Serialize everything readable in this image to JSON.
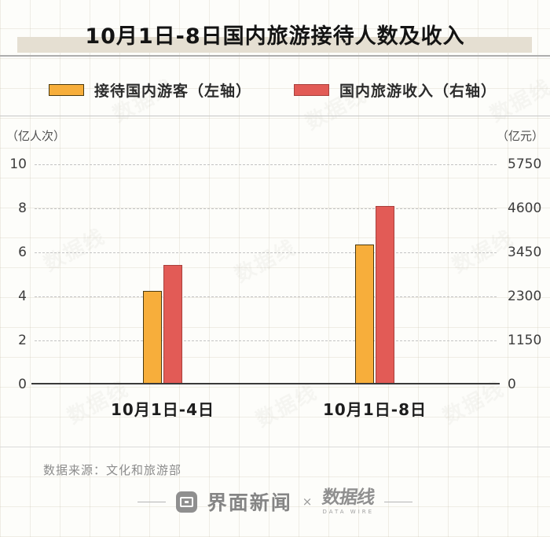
{
  "title": "10月1日-8日国内旅游接待人数及收入",
  "legend": [
    {
      "label": "接待国内游客（左轴）"
    },
    {
      "label": "国内旅游收入（右轴）"
    }
  ],
  "chart_data": {
    "type": "bar",
    "title": "10月1日-8日国内旅游接待人数及收入",
    "categories": [
      "10月1日-4日",
      "10月1日-8日"
    ],
    "series": [
      {
        "name": "接待国内游客（左轴）",
        "axis": "left",
        "values": [
          4.25,
          6.37
        ],
        "color": "#F7AE3B",
        "border": "#4a3a10"
      },
      {
        "name": "国内旅游收入（右轴）",
        "axis": "right",
        "values": [
          3120.2,
          4665.6
        ],
        "color": "#E25B56",
        "border": "#a8403c"
      }
    ],
    "left_axis": {
      "unit": "（亿人次）",
      "range": [
        0,
        10
      ],
      "ticks": [
        0,
        2,
        4,
        6,
        8,
        10
      ]
    },
    "right_axis": {
      "unit": "（亿元）",
      "range": [
        0,
        5750
      ],
      "ticks": [
        0,
        1150,
        2300,
        3450,
        4600,
        5750
      ]
    },
    "grid": "horizontal dashed",
    "legend_position": "top"
  },
  "source": "数据来源：文化和旅游部",
  "footer": {
    "brand1": "界面新闻",
    "separator": "×",
    "brand2": "数据线",
    "brand2_sub": "DATA WIRE"
  },
  "watermark": "数据线",
  "colors": {
    "bar_visitors": "#F7AE3B",
    "bar_revenue": "#E25B56",
    "title_highlight": "#e5dfd2",
    "axis_line": "#3a3a3a",
    "gridline": "#c3c3c3"
  }
}
